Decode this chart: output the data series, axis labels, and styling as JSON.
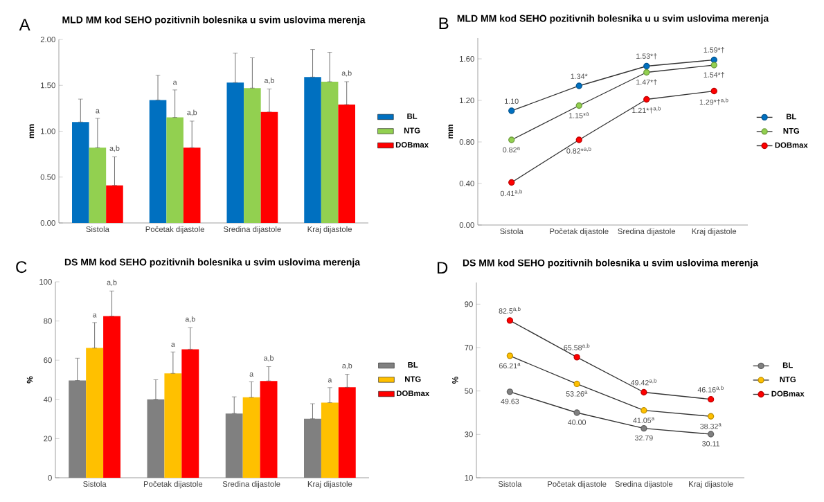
{
  "chart_data": [
    {
      "type": "bar",
      "title": "MLD MM kod SEHO pozitivnih bolesnika u svim uslovima merenja",
      "ylabel": "mm",
      "annotations": [
        "A",
        "a,b",
        "a,b",
        "a,b",
        "a,b",
        {
          "text": "a",
          "x": "Sistola",
          "y": 1.14
        },
        {
          "text": "a",
          "x": "Početak dijastole",
          "y": 1.45
        }
      ],
      "categories": [
        "Sistola",
        "Početak dijastole",
        "Sredina dijastole",
        "Kraj dijastole"
      ],
      "ylim": [
        0,
        2
      ],
      "yticks": [
        {
          "value": 0,
          "label": "0.00"
        },
        {
          "value": 0.5,
          "label": "0.50"
        },
        {
          "value": 1,
          "label": "1.00"
        },
        {
          "value": 1.5,
          "label": "1.50"
        },
        {
          "value": 2,
          "label": "2.00"
        }
      ],
      "legend": "right",
      "series": [
        {
          "name": "BL",
          "color": "#0070c0",
          "values": [
            1.1,
            1.34,
            1.53,
            1.59
          ],
          "errors": [
            [
              1.1,
              1.35
            ],
            [
              1.34,
              1.61
            ],
            [
              1.53,
              1.85
            ],
            [
              1.59,
              1.89
            ]
          ]
        },
        {
          "name": "NTG",
          "color": "#92d050",
          "values": [
            0.82,
            1.15,
            1.47,
            1.54
          ],
          "errors": [
            [
              0.82,
              1.14
            ],
            [
              1.15,
              1.45
            ],
            [
              1.47,
              1.8
            ],
            [
              1.54,
              1.86
            ]
          ]
        },
        {
          "name": "DOBmax",
          "color": "#ff0000",
          "values": [
            0.41,
            0.82,
            1.21,
            1.29
          ],
          "errors": [
            [
              0.41,
              0.72
            ],
            [
              0.82,
              1.11
            ],
            [
              1.21,
              1.46
            ],
            [
              1.29,
              1.54
            ]
          ]
        }
      ]
    },
    {
      "type": "line",
      "title": "MLD MM kod SEHO pozitivnih bolesnika u u svim uslovima merenja",
      "ylabel": "mm",
      "annotations": [
        "B"
      ],
      "categories": [
        "Sistola",
        "Početak dijastole",
        "Sredina dijastole",
        "Kraj dijastole"
      ],
      "ylim": [
        0,
        1.8
      ],
      "yticks": [
        {
          "value": 0,
          "label": "0.00"
        },
        {
          "value": 0.4,
          "label": "0.40"
        },
        {
          "value": 0.8,
          "label": "0.80"
        },
        {
          "value": 1.2,
          "label": "1.20"
        },
        {
          "value": 1.6,
          "label": "1.60"
        }
      ],
      "legend": "right",
      "marker": "circle",
      "series": [
        {
          "name": "BL",
          "color": "#0070c0",
          "values": [
            1.1,
            1.34,
            1.53,
            1.59
          ],
          "value_labels": [
            "1.10",
            "1.34*",
            "1.53*†",
            "1.59*†"
          ]
        },
        {
          "name": "NTG",
          "color": "#92d050",
          "values": [
            0.82,
            1.15,
            1.47,
            1.54
          ],
          "value_labels": [
            "0.82$^{a}$",
            "1.15*$^{a}$",
            "1.47*†",
            "1.54*†"
          ]
        },
        {
          "name": "DOBmax",
          "color": "#ff0000",
          "values": [
            0.41,
            0.82,
            1.21,
            1.29
          ],
          "value_labels": [
            "0.41$^{a,b}$",
            "0.82*$^{a,b}$",
            "1.21*†$^{a,b}$",
            "1.29*†$^{a,b}$"
          ]
        }
      ]
    },
    {
      "type": "bar",
      "title": "DS MM kod SEHO pozitivnih bolesnika u svim uslovima merenja",
      "ylabel": "%",
      "annotations": [
        "C",
        "a,b",
        "a,b",
        "a,b",
        "a,b",
        {
          "text": "a",
          "x": "Sistola",
          "y": 79.2
        },
        {
          "text": "a",
          "x": "Početak dijastole",
          "y": 64.2
        },
        {
          "text": "a",
          "x": "Sredina dijastole",
          "y": 49
        },
        {
          "text": "a",
          "x": "Kraj dijastole",
          "y": 46
        }
      ],
      "categories": [
        "Sistola",
        "Početak dijastole",
        "Sredina dijastole",
        "Kraj dijastole"
      ],
      "ylim": [
        0,
        100
      ],
      "yticks": [
        0,
        20,
        40,
        60,
        80,
        100
      ],
      "legend": "right",
      "series": [
        {
          "name": "BL",
          "color": "#808080",
          "values": [
            49.63,
            40.0,
            32.79,
            30.11
          ],
          "errors": [
            [
              49.63,
              61
            ],
            [
              40.0,
              50
            ],
            [
              32.79,
              41.3
            ],
            [
              30.11,
              37.8
            ]
          ]
        },
        {
          "name": "NTG",
          "color": "#ffc000",
          "values": [
            66.21,
            53.26,
            41.05,
            38.32
          ],
          "errors": [
            [
              66.21,
              79.2
            ],
            [
              53.26,
              64.2
            ],
            [
              41.05,
              49
            ],
            [
              38.32,
              46
            ]
          ]
        },
        {
          "name": "DOBmax",
          "color": "#ff0000",
          "values": [
            82.5,
            65.58,
            49.42,
            46.16
          ],
          "errors": [
            [
              82.5,
              95.3
            ],
            [
              65.58,
              76.6
            ],
            [
              49.42,
              56.7
            ],
            [
              46.16,
              52.8
            ]
          ]
        }
      ]
    },
    {
      "type": "line",
      "title": "DS MM kod SEHO pozitivnih bolesnika u svim uslovima merenja",
      "ylabel": "%",
      "annotations": [
        "D"
      ],
      "categories": [
        "Sistola",
        "Početak dijastole",
        "Sredina dijastole",
        "Kraj dijastole"
      ],
      "ylim": [
        10,
        100
      ],
      "yticks": [
        10,
        30,
        50,
        70,
        90
      ],
      "legend": "right",
      "marker": "circle",
      "series": [
        {
          "name": "BL",
          "color": "#808080",
          "values": [
            49.63,
            40.0,
            32.79,
            30.11
          ],
          "value_labels": [
            "49.63",
            "40.00",
            "32.79",
            "30.11"
          ]
        },
        {
          "name": "NTG",
          "color": "#ffc000",
          "values": [
            66.21,
            53.26,
            41.05,
            38.32
          ],
          "value_labels": [
            "66.21$^{a}$",
            "53.26$^{a}$",
            "41.05$^{a}$",
            "38.32$^{a}$"
          ]
        },
        {
          "name": "DOBmax",
          "color": "#ff0000",
          "values": [
            82.5,
            65.58,
            49.42,
            46.16
          ],
          "value_labels": [
            "82.5$^{a,b}$",
            "65.58$^{a,b}$",
            "49.42$^{a,b}$",
            "46.16$^{a,b}$"
          ]
        }
      ]
    }
  ]
}
